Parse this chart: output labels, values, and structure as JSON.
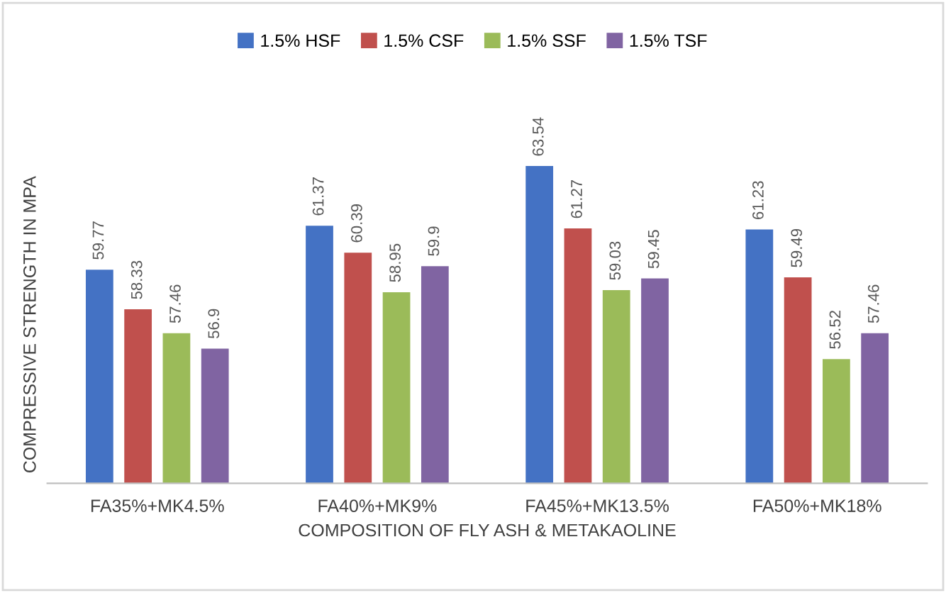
{
  "chart_data": {
    "type": "bar",
    "xlabel": "COMPOSITION OF FLY ASH & METAKAOLINE",
    "ylabel": "COMPRESSIVE STRENGTH IN MPA",
    "categories": [
      "FA35%+MK4.5%",
      "FA40%+MK9%",
      "FA45%+MK13.5%",
      "FA50%+MK18%"
    ],
    "series": [
      {
        "name": "1.5% HSF",
        "color": "#4472c4",
        "values": [
          59.77,
          61.37,
          63.54,
          61.23
        ]
      },
      {
        "name": "1.5% CSF",
        "color": "#c0504d",
        "values": [
          58.33,
          60.39,
          61.27,
          59.49
        ]
      },
      {
        "name": "1.5% SSF",
        "color": "#9bbb59",
        "values": [
          57.46,
          58.95,
          59.03,
          56.52
        ]
      },
      {
        "name": "1.5% TSF",
        "color": "#8064a2",
        "values": [
          56.9,
          59.9,
          59.45,
          57.46
        ]
      }
    ],
    "ylim": [
      52,
      63.54
    ],
    "tick_labels": "x",
    "data_labels": true,
    "legend": "top",
    "grid": false
  }
}
